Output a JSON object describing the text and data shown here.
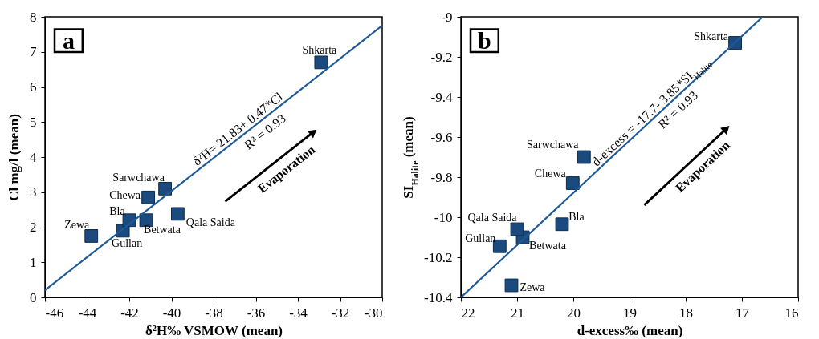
{
  "chart_data": [
    {
      "type": "scatter",
      "title": "a",
      "xlabel": "δ²H‰ VSMOW (mean)",
      "ylabel": "Cl mg/l (mean)",
      "grid": false,
      "x": [
        -43.8,
        -42.3,
        -42,
        -41.2,
        -41.1,
        -40.3,
        -39.7,
        -32.9
      ],
      "series": [
        {
          "marker": "square",
          "color": "#1a4a7e",
          "values": [
            1.75,
            1.9,
            2.2,
            2.2,
            2.85,
            3.1,
            2.38,
            6.7
          ]
        },
        {
          "type": "line",
          "color": "#1f5a96",
          "x": [
            -46,
            -30
          ],
          "values": [
            0.2,
            7.75
          ]
        }
      ],
      "xlim": [
        -46,
        -30
      ],
      "xticks": [
        -46,
        -44,
        -42,
        -40,
        -38,
        -36,
        -34,
        -32,
        -30
      ],
      "ylim": [
        0,
        8
      ],
      "yticks": [
        0,
        1,
        2,
        3,
        4,
        5,
        6,
        7,
        8
      ],
      "annotations": [
        {
          "text": "Zewa",
          "x": -43.8,
          "y": 1.75
        },
        {
          "text": "Gullan",
          "x": -42.3,
          "y": 1.9
        },
        {
          "text": "Bla",
          "x": -42,
          "y": 2.2
        },
        {
          "text": "Betwata",
          "x": -41.2,
          "y": 2.2
        },
        {
          "text": "Chewa",
          "x": -41.1,
          "y": 2.85
        },
        {
          "text": "Sarwchawa",
          "x": -40.3,
          "y": 3.1
        },
        {
          "text": "Qala Saida",
          "x": -39.7,
          "y": 2.38
        },
        {
          "text": "Shkarta",
          "x": -32.9,
          "y": 6.7
        },
        "δ²H= 21.83+ 0.47*Cl",
        "R² = 0.93",
        "Evaporation"
      ]
    },
    {
      "type": "scatter",
      "title": "b",
      "xlabel": "d-excess‰ (mean)",
      "ylabel": "SI$_{Halite}$ (mean)",
      "grid": false,
      "x": [
        21.1,
        21.31,
        20.2,
        20.9,
        20.01,
        19.81,
        21.0,
        17.12
      ],
      "series": [
        {
          "marker": "square",
          "color": "#1a4a7e",
          "values": [
            -10.34,
            -10.145,
            -10.035,
            -10.1,
            -9.83,
            -9.7,
            -10.06,
            -9.13
          ]
        },
        {
          "type": "line",
          "color": "#1f5a96",
          "x": [
            22,
            16.63
          ],
          "values": [
            -10.4,
            -9
          ]
        }
      ],
      "xlim": [
        22,
        16
      ],
      "xticks": [
        22,
        21,
        20,
        19,
        18,
        17,
        16
      ],
      "ylim": [
        -10.4,
        -9
      ],
      "yticks": [
        -10.4,
        -10.2,
        -10,
        -9.8,
        -9.6,
        -9.4,
        -9.2,
        -9
      ],
      "annotations": [
        {
          "text": "Zewa",
          "x": 21.1,
          "y": -10.34
        },
        {
          "text": "Gullan",
          "x": 21.31,
          "y": -10.145
        },
        {
          "text": "Bla",
          "x": 20.2,
          "y": -10.035
        },
        {
          "text": "Betwata",
          "x": 20.9,
          "y": -10.1
        },
        {
          "text": "Chewa",
          "x": 20.01,
          "y": -9.83
        },
        {
          "text": "Sarwchawa",
          "x": 19.81,
          "y": -9.7
        },
        {
          "text": "Qala Saida",
          "x": 21.0,
          "y": -10.06
        },
        {
          "text": "Shkarta",
          "x": 17.12,
          "y": -9.13
        },
        "d-excess = -17.7- 3.85*SI$_{Halite}$",
        "R² = 0.93",
        "Evaporation"
      ]
    }
  ]
}
